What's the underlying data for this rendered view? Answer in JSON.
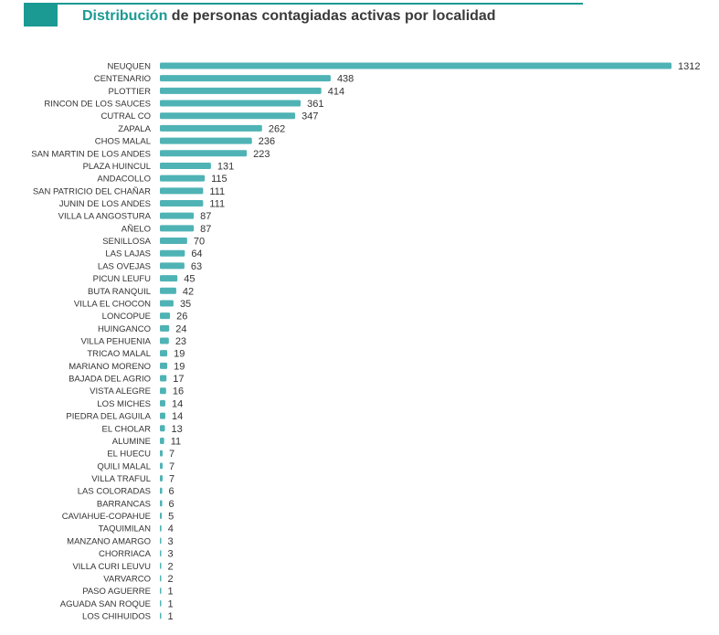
{
  "header": {
    "title_accent": "Distribución",
    "title_rest": " de personas contagiadas activas por localidad"
  },
  "colors": {
    "accent": "#1a9a93",
    "bar": "#4fb3b5"
  },
  "chart_data": {
    "type": "bar",
    "orientation": "horizontal",
    "title": "Distribución de personas contagiadas activas por localidad",
    "xlabel": "",
    "ylabel": "",
    "grid": false,
    "categories": [
      "NEUQUEN",
      "CENTENARIO",
      "PLOTTIER",
      "RINCON DE LOS SAUCES",
      "CUTRAL CO",
      "ZAPALA",
      "CHOS MALAL",
      "SAN MARTIN DE LOS ANDES",
      "PLAZA HUINCUL",
      "ANDACOLLO",
      "SAN PATRICIO DEL CHAÑAR",
      "JUNIN DE LOS ANDES",
      "VILLA LA ANGOSTURA",
      "AÑELO",
      "SENILLOSA",
      "LAS LAJAS",
      "LAS OVEJAS",
      "PICUN LEUFU",
      "BUTA RANQUIL",
      "VILLA EL CHOCON",
      "LONCOPUE",
      "HUINGANCO",
      "VILLA PEHUENIA",
      "TRICAO MALAL",
      "MARIANO MORENO",
      "BAJADA DEL AGRIO",
      "VISTA ALEGRE",
      "LOS MICHES",
      "PIEDRA DEL AGUILA",
      "EL CHOLAR",
      "ALUMINE",
      "EL HUECU",
      "QUILI MALAL",
      "VILLA TRAFUL",
      "LAS COLORADAS",
      "BARRANCAS",
      "CAVIAHUE-COPAHUE",
      "TAQUIMILAN",
      "MANZANO AMARGO",
      "CHORRIACA",
      "VILLA CURI LEUVU",
      "VARVARCO",
      "PASO AGUERRE",
      "AGUADA SAN ROQUE",
      "LOS CHIHUIDOS"
    ],
    "values": [
      1312,
      438,
      414,
      361,
      347,
      262,
      236,
      223,
      131,
      115,
      111,
      111,
      87,
      87,
      70,
      64,
      63,
      45,
      42,
      35,
      26,
      24,
      23,
      19,
      19,
      17,
      16,
      14,
      14,
      13,
      11,
      7,
      7,
      7,
      6,
      6,
      5,
      4,
      3,
      3,
      2,
      2,
      1,
      1,
      1
    ],
    "xlim": [
      0,
      1312
    ]
  }
}
